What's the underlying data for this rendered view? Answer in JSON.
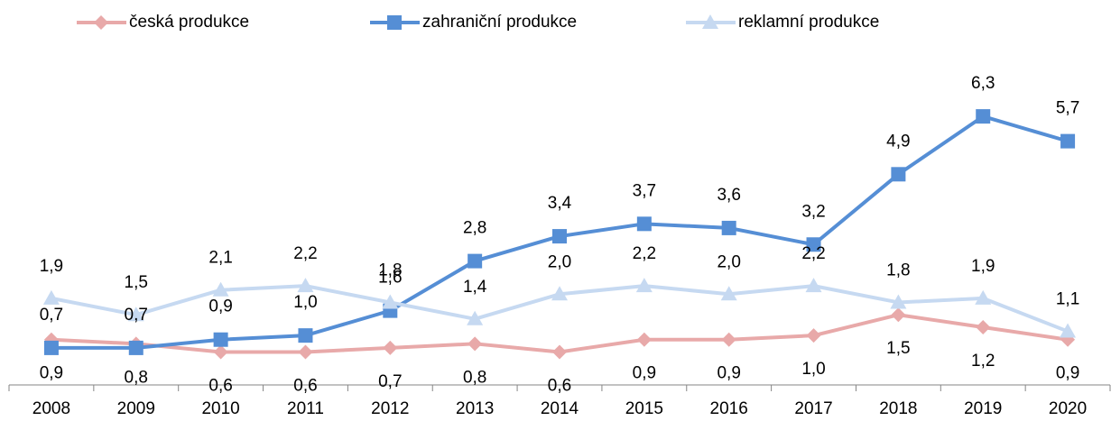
{
  "chart_data": {
    "type": "line",
    "categories": [
      "2008",
      "2009",
      "2010",
      "2011",
      "2012",
      "2013",
      "2014",
      "2015",
      "2016",
      "2017",
      "2018",
      "2019",
      "2020"
    ],
    "series": [
      {
        "name": "česká produkce",
        "color": "#e8a9a9",
        "marker": "diamond",
        "values": [
          0.9,
          0.8,
          0.6,
          0.6,
          0.7,
          0.8,
          0.6,
          0.9,
          0.9,
          1.0,
          1.5,
          1.2,
          0.9
        ],
        "value_labels": [
          "0,9",
          "0,8",
          "0,6",
          "0,6",
          "0,7",
          "0,8",
          "0,6",
          "0,9",
          "0,9",
          "1,0",
          "1,5",
          "1,2",
          "0,9"
        ]
      },
      {
        "name": "zahraniční produkce",
        "color": "#558ed5",
        "marker": "square",
        "values": [
          0.7,
          0.7,
          0.9,
          1.0,
          1.6,
          2.8,
          3.4,
          3.7,
          3.6,
          3.2,
          4.9,
          6.3,
          5.7
        ],
        "value_labels": [
          "0,7",
          "0,7",
          "0,9",
          "1,0",
          "1,6",
          "2,8",
          "3,4",
          "3,7",
          "3,6",
          "3,2",
          "4,9",
          "6,3",
          "5,7"
        ]
      },
      {
        "name": "reklamní produkce",
        "color": "#c6d9f1",
        "marker": "triangle",
        "values": [
          1.9,
          1.5,
          2.1,
          2.2,
          1.8,
          1.4,
          2.0,
          2.2,
          2.0,
          2.2,
          1.8,
          1.9,
          1.1
        ],
        "value_labels": [
          "1,9",
          "1,5",
          "2,1",
          "2,2",
          "1,8",
          "1,4",
          "2,0",
          "2,2",
          "2,0",
          "2,2",
          "1,8",
          "1,9",
          "1,1"
        ]
      }
    ],
    "ylim": [
      0,
      7
    ],
    "legend": "top"
  }
}
